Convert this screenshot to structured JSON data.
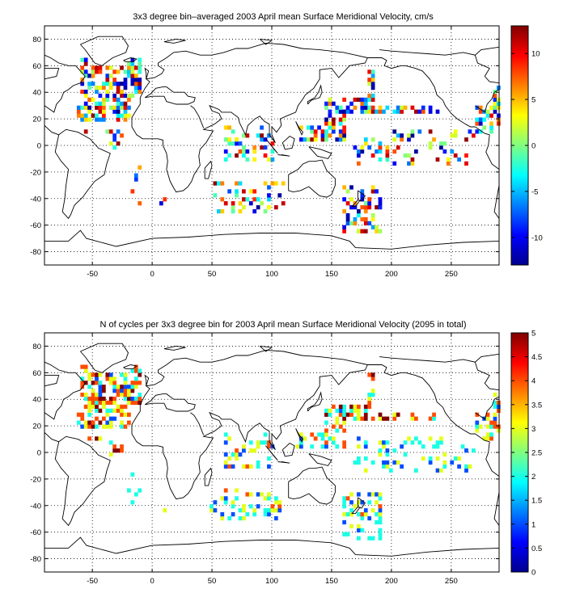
{
  "chart_data": [
    {
      "type": "heatmap",
      "title": "3x3 degree bin–averaged 2003 April mean Surface Meridional Velocity, cm/s",
      "xlabel": "",
      "ylabel": "",
      "xlim": [
        -90,
        290
      ],
      "ylim": [
        -90,
        90
      ],
      "x_ticks": [
        "-50",
        "0",
        "50",
        "100",
        "150",
        "200",
        "250"
      ],
      "x_tick_values": [
        -50,
        0,
        50,
        100,
        150,
        200,
        250
      ],
      "y_ticks": [
        "80",
        "60",
        "40",
        "20",
        "0",
        "-20",
        "-40",
        "-60",
        "-80"
      ],
      "y_tick_values": [
        80,
        60,
        40,
        20,
        0,
        -20,
        -40,
        -60,
        -80
      ],
      "grid": true,
      "colorbar": {
        "range": [
          -13,
          13
        ],
        "ticks": [
          "10",
          "5",
          "0",
          "-5",
          "-10"
        ],
        "tick_values": [
          10,
          5,
          0,
          -5,
          -10
        ],
        "colormap": "jet"
      },
      "bin_size_deg": 3,
      "regions": [
        {
          "lon": [
            -62,
            -10
          ],
          "lat": [
            18,
            64
          ],
          "density": 0.55,
          "values": [
            -13,
            13
          ]
        },
        {
          "lon": [
            -58,
            -25
          ],
          "lat": [
            -2,
            10
          ],
          "density": 0.45,
          "values": [
            -13,
            13
          ]
        },
        {
          "lon": [
            -20,
            10
          ],
          "lat": [
            -45,
            -10
          ],
          "density": 0.12,
          "values": [
            -13,
            13
          ]
        },
        {
          "lon": [
            50,
            110
          ],
          "lat": [
            -50,
            -28
          ],
          "density": 0.25,
          "values": [
            -13,
            13
          ]
        },
        {
          "lon": [
            60,
            100
          ],
          "lat": [
            -10,
            20
          ],
          "density": 0.3,
          "values": [
            -13,
            13
          ]
        },
        {
          "lon": [
            120,
            160
          ],
          "lat": [
            5,
            40
          ],
          "density": 0.45,
          "values": [
            -13,
            13
          ]
        },
        {
          "lon": [
            155,
            240
          ],
          "lat": [
            25,
            60
          ],
          "density": 0.45,
          "values": [
            -13,
            13
          ]
        },
        {
          "lon": [
            170,
            270
          ],
          "lat": [
            -15,
            10
          ],
          "density": 0.2,
          "values": [
            -13,
            13
          ]
        },
        {
          "lon": [
            160,
            190
          ],
          "lat": [
            -65,
            -30
          ],
          "density": 0.35,
          "values": [
            -13,
            13
          ]
        },
        {
          "lon": [
            270,
            290
          ],
          "lat": [
            10,
            45
          ],
          "density": 0.45,
          "values": [
            -13,
            13
          ]
        }
      ]
    },
    {
      "type": "heatmap",
      "title": "N of cycles per 3x3 degree bin for 2003 April mean Surface Meridional Velocity (2095 in total)",
      "xlabel": "",
      "ylabel": "",
      "xlim": [
        -90,
        290
      ],
      "ylim": [
        -90,
        90
      ],
      "x_ticks": [
        "-50",
        "0",
        "50",
        "100",
        "150",
        "200",
        "250"
      ],
      "x_tick_values": [
        -50,
        0,
        50,
        100,
        150,
        200,
        250
      ],
      "y_ticks": [
        "80",
        "60",
        "40",
        "20",
        "0",
        "-20",
        "-40",
        "-60",
        "-80"
      ],
      "y_tick_values": [
        80,
        60,
        40,
        20,
        0,
        -20,
        -40,
        -60,
        -80
      ],
      "grid": true,
      "colorbar": {
        "range": [
          0,
          5
        ],
        "ticks": [
          "5",
          "4.5",
          "4",
          "3.5",
          "3",
          "2.5",
          "2",
          "1.5",
          "1",
          "0.5",
          "0"
        ],
        "tick_values": [
          5,
          4.5,
          4,
          3.5,
          3,
          2.5,
          2,
          1.5,
          1,
          0.5,
          0
        ],
        "colormap": "jet"
      },
      "bin_size_deg": 3,
      "regions": [
        {
          "lon": [
            -62,
            -10
          ],
          "lat": [
            18,
            64
          ],
          "density": 0.55,
          "values": [
            1,
            5
          ]
        },
        {
          "lon": [
            -58,
            -25
          ],
          "lat": [
            -2,
            10
          ],
          "density": 0.45,
          "values": [
            1,
            5
          ]
        },
        {
          "lon": [
            -20,
            10
          ],
          "lat": [
            -45,
            -10
          ],
          "density": 0.12,
          "values": [
            1,
            3
          ]
        },
        {
          "lon": [
            50,
            110
          ],
          "lat": [
            -50,
            -28
          ],
          "density": 0.25,
          "values": [
            1,
            4
          ]
        },
        {
          "lon": [
            60,
            100
          ],
          "lat": [
            -10,
            20
          ],
          "density": 0.3,
          "values": [
            1,
            4
          ]
        },
        {
          "lon": [
            120,
            160
          ],
          "lat": [
            5,
            40
          ],
          "density": 0.45,
          "values": [
            1,
            5
          ]
        },
        {
          "lon": [
            155,
            240
          ],
          "lat": [
            25,
            60
          ],
          "density": 0.45,
          "values": [
            2,
            5
          ]
        },
        {
          "lon": [
            170,
            270
          ],
          "lat": [
            -15,
            10
          ],
          "density": 0.2,
          "values": [
            1,
            3
          ]
        },
        {
          "lon": [
            160,
            190
          ],
          "lat": [
            -65,
            -30
          ],
          "density": 0.35,
          "values": [
            1,
            4
          ]
        },
        {
          "lon": [
            270,
            290
          ],
          "lat": [
            10,
            45
          ],
          "density": 0.45,
          "values": [
            1,
            4
          ]
        }
      ]
    }
  ]
}
